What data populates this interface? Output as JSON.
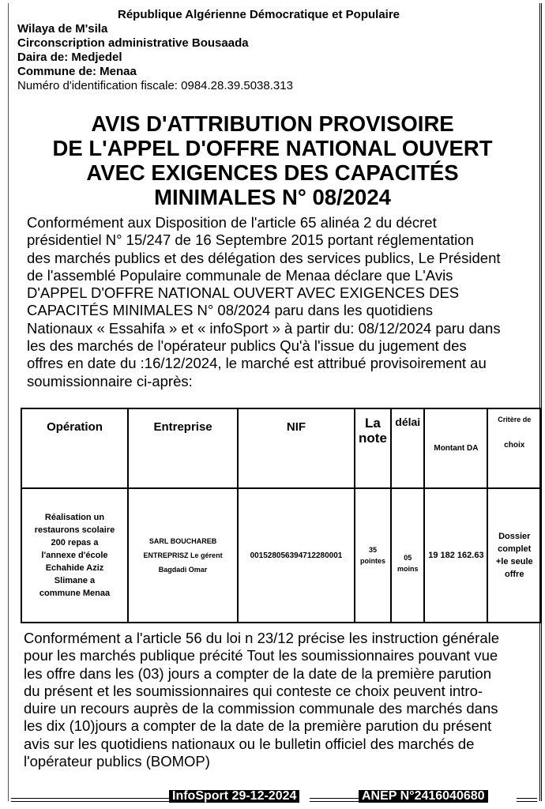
{
  "header": {
    "republic": "République Algérienne Démocratique et Populaire",
    "wilaya": "Wilaya de M'sila",
    "circonscription": "Circonscription administrative Bousaada",
    "daira": "Daira de: Medjedel",
    "commune": "Commune de: Menaa",
    "nif": "Numéro d'identification fiscale: 0984.28.39.5038.313"
  },
  "title": [
    "AVIS D'ATTRIBUTION PROVISOIRE",
    "DE L'APPEL D'OFFRE NATIONAL OUVERT",
    "AVEC EXIGENCES DES CAPACITÉS",
    "MINIMALES N° 08/2024"
  ],
  "intro": [
    "Conformément aux Disposition de l'article 65 alinéa 2 du décret",
    "présidentiel N° 15/247 de 16 Septembre 2015 portant réglementation",
    "des marchés publics et des délégation des services publics, Le Président",
    "de l'assemblé Populaire communale de Menaa déclare que L'Avis",
    "D'APPEL D'OFFRE NATIONAL OUVERT AVEC EXIGENCES DES",
    "CAPACITÉS MINIMALES N° 08/2024 paru dans les quotidiens",
    "Nationaux « Essahifa » et « infoSport » à partir du: 08/12/2024 paru dans",
    "les des marchés de l'opérateur publics Qu'à l'issue du jugement des",
    "offres en date du :16/12/2024, le marché est attribué provisoirement au",
    "soumissionnaire ci-après:"
  ],
  "table": {
    "headers": {
      "operation": "Opération",
      "entreprise": "Entreprise",
      "nif": "NIF",
      "note": "La note",
      "delai": "délai",
      "montant": "Montant DA",
      "critere_1": "Critère de",
      "critere_2": "choix"
    },
    "row": {
      "operation": [
        "Réalisation un",
        "restaurons scolaire",
        "200 repas a",
        "l'annexe d'école",
        "Echahide Aziz",
        "Slimane a",
        "commune Menaa"
      ],
      "entreprise": [
        "SARL BOUCHAREB",
        "ENTREPRISZ Le gérent",
        "Bagdadi Omar"
      ],
      "nif": "001528056394712280001",
      "note": [
        "35",
        "pointes"
      ],
      "delai": [
        "05",
        "moins"
      ],
      "montant": "19 182 162.63",
      "critere": [
        "Dossier",
        "complet",
        "+le seule",
        "offre"
      ]
    }
  },
  "closing": [
    "Conformément a l'article 56 du loi n 23/12 précise les instruction générale",
    "pour les marchés publique précité Tout les soumissionnaires pouvant vue",
    "les offre dans les (03) jours a compter de la date de la première parution",
    "du présent et les soumissionnaires qui conteste ce choix peuvent intro-",
    "duire un recours auprès de la commission communale des marchés dans",
    "les dix (10)jours a compter de la date de la première parution du présent",
    "avis sur les quotidiens nationaux ou le bulletin officiel des marchés de",
    "l'opérateur publics (BOMOP)"
  ],
  "footer": {
    "publication": "InfoSport 29-12-2024",
    "anep": "ANEP N°2416040680"
  }
}
